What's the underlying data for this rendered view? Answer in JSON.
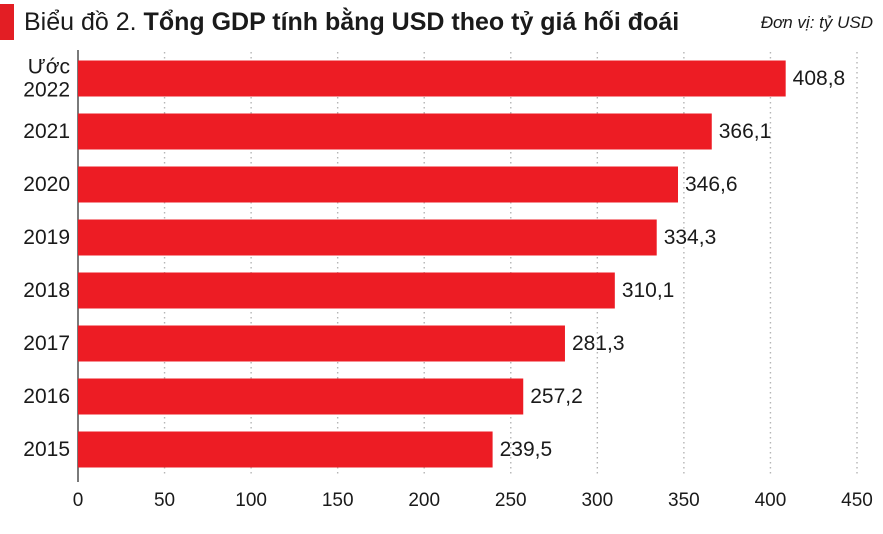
{
  "header": {
    "prefix": "Biểu đồ 2.",
    "title": "Tổng GDP tính bằng USD theo tỷ giá hối đoái",
    "unit": "Đơn vị: tỷ USD"
  },
  "colors": {
    "accent": "#e31e24",
    "bar": "#ed1c24",
    "grid": "#b5b5b5",
    "axis": "#222222"
  },
  "chart_data": {
    "type": "bar",
    "orientation": "horizontal",
    "categories": [
      [
        "Ước",
        "2022"
      ],
      [
        "2021"
      ],
      [
        "2020"
      ],
      [
        "2019"
      ],
      [
        "2018"
      ],
      [
        "2017"
      ],
      [
        "2016"
      ],
      [
        "2015"
      ]
    ],
    "values": [
      408.8,
      366.1,
      346.6,
      334.3,
      310.1,
      281.3,
      257.2,
      239.5
    ],
    "value_labels": [
      "408,8",
      "366,1",
      "346,6",
      "334,3",
      "310,1",
      "281,3",
      "257,2",
      "239,5"
    ],
    "xlim": [
      0,
      450
    ],
    "xticks": [
      0,
      50,
      100,
      150,
      200,
      250,
      300,
      350,
      400,
      450
    ],
    "grid": "vertical",
    "legend": "none"
  }
}
